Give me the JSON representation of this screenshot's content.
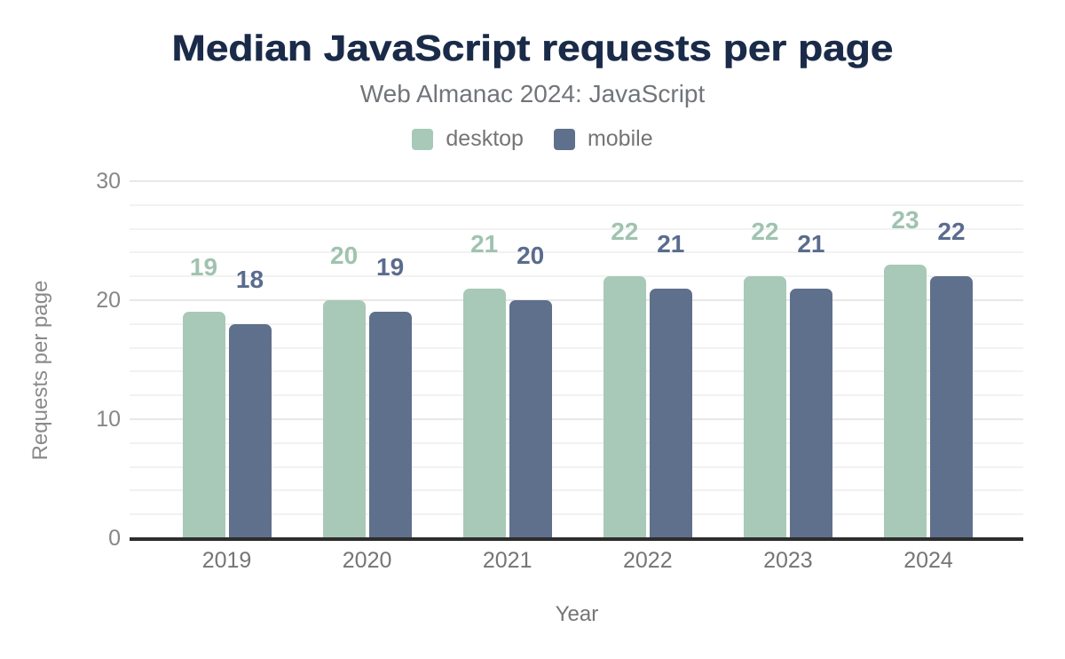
{
  "title": "Median JavaScript requests per page",
  "subtitle": "Web Almanac 2024: JavaScript",
  "chart_data": {
    "type": "bar",
    "categories": [
      "2019",
      "2020",
      "2021",
      "2022",
      "2023",
      "2024"
    ],
    "series": [
      {
        "name": "desktop",
        "color": "#a8c9b8",
        "label_color": "#9fc3af",
        "values": [
          19,
          20,
          21,
          22,
          22,
          23
        ]
      },
      {
        "name": "mobile",
        "color": "#5f708c",
        "label_color": "#5a6c8e",
        "values": [
          18,
          19,
          20,
          21,
          21,
          22
        ]
      }
    ],
    "xlabel": "Year",
    "ylabel": "Requests per page",
    "ylim": [
      0,
      30
    ],
    "yticks": [
      0,
      10,
      20,
      30
    ],
    "minor_grid_step": 2,
    "grid": "horizontal",
    "legend_position": "top",
    "data_labels": true
  }
}
